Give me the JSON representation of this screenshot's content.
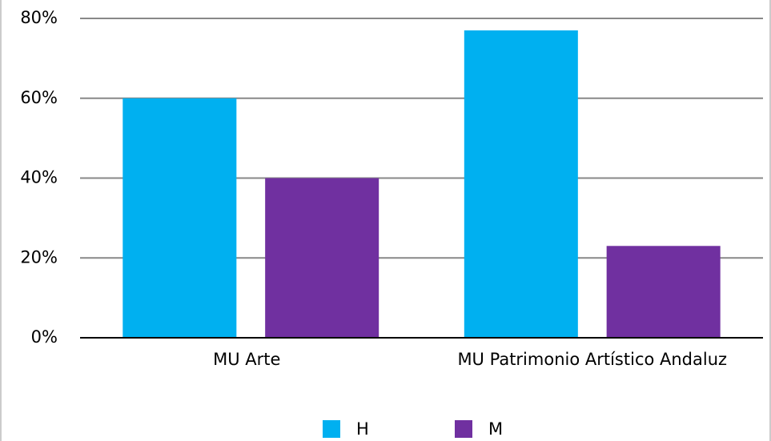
{
  "chart_data": {
    "type": "bar",
    "categories": [
      "MU Arte",
      "MU Patrimonio Artístico Andaluz"
    ],
    "series": [
      {
        "name": "H",
        "color": "#00b0f0",
        "values": [
          60,
          77
        ]
      },
      {
        "name": "M",
        "color": "#7030a0",
        "values": [
          40,
          23
        ]
      }
    ],
    "ylim": [
      0,
      80
    ],
    "yticks": [
      {
        "value": 0,
        "label": "0%"
      },
      {
        "value": 20,
        "label": "20%"
      },
      {
        "value": 40,
        "label": "40%"
      },
      {
        "value": 60,
        "label": "60%"
      },
      {
        "value": 80,
        "label": "80%"
      }
    ],
    "grid": true,
    "legend": "bottom"
  }
}
